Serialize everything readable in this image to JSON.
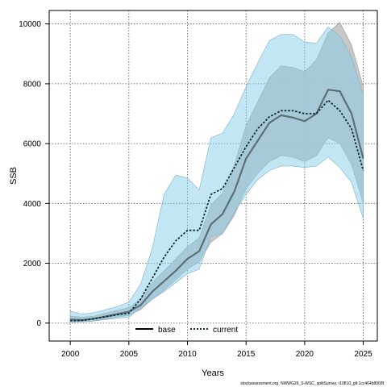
{
  "chart_data": {
    "type": "line",
    "xlabel": "Years",
    "ylabel": "SSB",
    "xlim": [
      1998.2,
      2026.2
    ],
    "ylim": [
      -600,
      10450
    ],
    "xticks": [
      2000,
      2005,
      2010,
      2015,
      2020,
      2025
    ],
    "yticks": [
      0,
      2000,
      4000,
      6000,
      8000,
      10000
    ],
    "x_tick_labels": [
      "2000",
      "2005",
      "2010",
      "2015",
      "2020",
      "2025"
    ],
    "y_tick_labels": [
      "0",
      "2000",
      "4000",
      "6000",
      "8000",
      "10000"
    ],
    "grid": true,
    "legend_position": "bottom-center",
    "footnote": "stockassessment.org, NWWG26_S-WSC_splitSurvey, r10810_git:1cc464b8068f",
    "x": [
      2000,
      2001,
      2002,
      2003,
      2004,
      2005,
      2006,
      2007,
      2008,
      2009,
      2010,
      2011,
      2012,
      2013,
      2014,
      2015,
      2016,
      2017,
      2018,
      2019,
      2020,
      2021,
      2022,
      2023,
      2024,
      2025
    ],
    "series": [
      {
        "name": "base",
        "color": "#000000",
        "line_style": "solid",
        "band_color": "#bdbdbd",
        "values": [
          120,
          100,
          150,
          220,
          300,
          380,
          600,
          1050,
          1400,
          1750,
          2150,
          2400,
          3300,
          3650,
          4400,
          5500,
          6100,
          6700,
          6950,
          6870,
          6750,
          7000,
          7800,
          7750,
          7000,
          5500
        ],
        "lower": [
          60,
          50,
          80,
          130,
          200,
          260,
          450,
          800,
          1100,
          1450,
          1800,
          2050,
          2700,
          3000,
          3600,
          4500,
          5000,
          5400,
          5600,
          5550,
          5400,
          5600,
          6200,
          6000,
          5300,
          4000
        ],
        "upper": [
          230,
          200,
          230,
          330,
          430,
          520,
          800,
          1350,
          1750,
          2150,
          2550,
          2850,
          3950,
          4350,
          5300,
          6600,
          7400,
          8200,
          8600,
          8550,
          8400,
          8800,
          9700,
          10050,
          9300,
          7900
        ]
      },
      {
        "name": "current",
        "color": "#0a2a3a",
        "line_style": "dotted",
        "band_color": "#87ceeb",
        "values": [
          80,
          90,
          140,
          210,
          280,
          330,
          800,
          1500,
          2200,
          2750,
          3100,
          3100,
          4300,
          4500,
          5200,
          5900,
          6500,
          6900,
          7100,
          7100,
          7000,
          7000,
          7450,
          7100,
          6500,
          5100
        ],
        "lower": [
          20,
          40,
          70,
          120,
          160,
          200,
          500,
          800,
          1050,
          1350,
          1650,
          1800,
          2900,
          3000,
          3700,
          4300,
          4800,
          5100,
          5250,
          5250,
          5200,
          5250,
          5550,
          5200,
          4700,
          3500
        ],
        "upper": [
          400,
          300,
          350,
          450,
          550,
          700,
          1300,
          2500,
          4300,
          4950,
          4850,
          4450,
          6200,
          6350,
          7000,
          7900,
          8700,
          9450,
          9650,
          9650,
          9400,
          9350,
          9900,
          9600,
          8900,
          7600
        ]
      }
    ]
  }
}
